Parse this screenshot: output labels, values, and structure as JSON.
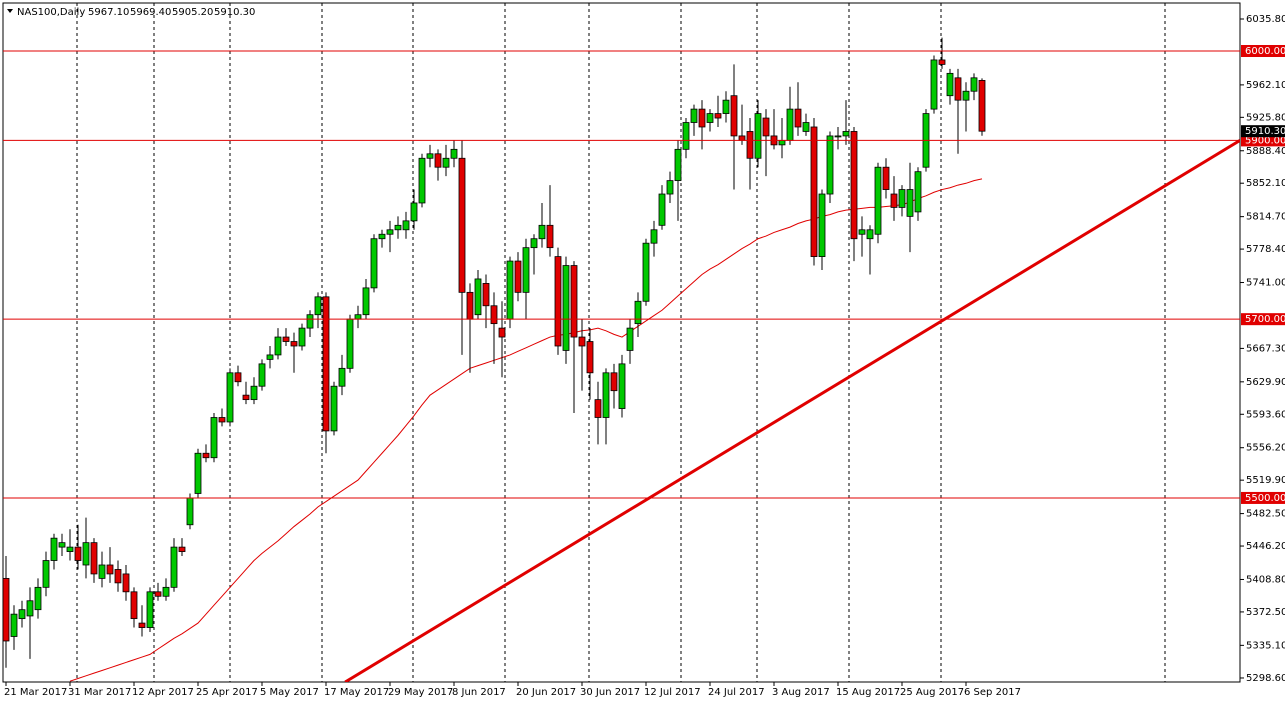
{
  "header": {
    "symbol": "NAS100,Daily",
    "ohlc": [
      "5967.10",
      "5969.40",
      "5905.20",
      "5910.30"
    ]
  },
  "chart_data": {
    "type": "candlestick",
    "categories": [
      "21 Mar 2017",
      null,
      null,
      null,
      null,
      null,
      null,
      null,
      "31 Mar 2017",
      null,
      null,
      null,
      null,
      null,
      null,
      null,
      "12 Apr 2017",
      null,
      null,
      null,
      null,
      null,
      null,
      null,
      "25 Apr 2017",
      null,
      null,
      null,
      null,
      null,
      null,
      null,
      "5 May 2017",
      null,
      null,
      null,
      null,
      null,
      null,
      null,
      "17 May 2017",
      null,
      null,
      null,
      null,
      null,
      null,
      null,
      "29 May 2017",
      null,
      null,
      null,
      null,
      null,
      null,
      null,
      "8 Jun 2017",
      null,
      null,
      null,
      null,
      null,
      null,
      null,
      "20 Jun 2017",
      null,
      null,
      null,
      null,
      null,
      null,
      null,
      "30 Jun 2017",
      null,
      null,
      null,
      null,
      null,
      null,
      null,
      "12 Jul 2017",
      null,
      null,
      null,
      null,
      null,
      null,
      null,
      "24 Jul 2017",
      null,
      null,
      null,
      null,
      null,
      null,
      null,
      "3 Aug 2017",
      null,
      null,
      null,
      null,
      null,
      null,
      null,
      "15 Aug 2017",
      null,
      null,
      null,
      null,
      null,
      null,
      null,
      "25 Aug 2017",
      null,
      null,
      null,
      null,
      null,
      null,
      null,
      "6 Sep 2017",
      null,
      null
    ],
    "open": [
      5410,
      5345,
      5365,
      5368,
      5375,
      5400,
      5430,
      5445,
      5440,
      5445,
      5425,
      5450,
      5410,
      5425,
      5420,
      5415,
      5395,
      5360,
      5355,
      5395,
      5390,
      5400,
      5445,
      5470,
      5505,
      5550,
      5545,
      5590,
      5585,
      5640,
      5615,
      5610,
      5625,
      5655,
      5660,
      5680,
      5675,
      5670,
      5690,
      5705,
      5725,
      5575,
      5625,
      5645,
      5700,
      5705,
      5735,
      5790,
      5795,
      5800,
      5800,
      5810,
      5830,
      5880,
      5885,
      5870,
      5880,
      5880,
      5730,
      5705,
      5740,
      5715,
      5690,
      5700,
      5765,
      5730,
      5780,
      5790,
      5805,
      5770,
      5665,
      5760,
      5680,
      5675,
      5610,
      5590,
      5640,
      5600,
      5665,
      5695,
      5720,
      5785,
      5805,
      5840,
      5855,
      5890,
      5920,
      5935,
      5920,
      5930,
      5930,
      5950,
      5905,
      5910,
      5880,
      5925,
      5905,
      5895,
      5900,
      5935,
      5910,
      5915,
      5770,
      5840,
      5905,
      5905,
      5910,
      5795,
      5790,
      5795,
      5870,
      5840,
      5825,
      5815,
      5820,
      5870,
      5935,
      5990,
      5950,
      5970,
      5945,
      5955,
      5967.1
    ],
    "high": [
      5435,
      5380,
      5385,
      5400,
      5410,
      5440,
      5460,
      5460,
      5465,
      5470,
      5478,
      5455,
      5440,
      5445,
      5430,
      5425,
      5400,
      5380,
      5400,
      5405,
      5410,
      5455,
      5455,
      5505,
      5555,
      5560,
      5595,
      5600,
      5645,
      5648,
      5630,
      5635,
      5655,
      5670,
      5690,
      5690,
      5685,
      5695,
      5710,
      5730,
      5730,
      5630,
      5660,
      5705,
      5715,
      5745,
      5795,
      5800,
      5810,
      5815,
      5820,
      5845,
      5885,
      5895,
      5890,
      5895,
      5900,
      5900,
      5740,
      5755,
      5750,
      5730,
      5720,
      5770,
      5775,
      5790,
      5795,
      5830,
      5850,
      5780,
      5770,
      5765,
      5700,
      5690,
      5630,
      5645,
      5650,
      5660,
      5700,
      5730,
      5790,
      5810,
      5850,
      5865,
      5900,
      5925,
      5940,
      5945,
      5935,
      5950,
      5955,
      5985,
      5940,
      5925,
      5945,
      5935,
      5935,
      5925,
      5960,
      5965,
      5930,
      5925,
      5845,
      5910,
      5915,
      5945,
      5915,
      5815,
      5805,
      5875,
      5880,
      5860,
      5850,
      5875,
      5870,
      5935,
      5995,
      6015,
      5980,
      5980,
      5965,
      5975,
      5969.4
    ],
    "low": [
      5310,
      5330,
      5355,
      5320,
      5365,
      5390,
      5420,
      5435,
      5430,
      5420,
      5410,
      5405,
      5400,
      5405,
      5395,
      5385,
      5355,
      5345,
      5350,
      5385,
      5385,
      5395,
      5435,
      5465,
      5500,
      5540,
      5540,
      5580,
      5580,
      5625,
      5605,
      5605,
      5620,
      5645,
      5655,
      5670,
      5640,
      5665,
      5680,
      5690,
      5550,
      5570,
      5615,
      5640,
      5690,
      5700,
      5730,
      5780,
      5775,
      5790,
      5790,
      5800,
      5825,
      5870,
      5855,
      5860,
      5870,
      5660,
      5640,
      5700,
      5690,
      5650,
      5635,
      5690,
      5720,
      5700,
      5750,
      5780,
      5770,
      5660,
      5650,
      5595,
      5620,
      5610,
      5560,
      5560,
      5600,
      5590,
      5650,
      5680,
      5715,
      5770,
      5800,
      5830,
      5810,
      5880,
      5905,
      5890,
      5910,
      5915,
      5920,
      5845,
      5895,
      5845,
      5870,
      5860,
      5890,
      5880,
      5895,
      5905,
      5905,
      5760,
      5755,
      5830,
      5890,
      5895,
      5765,
      5770,
      5750,
      5785,
      5835,
      5810,
      5815,
      5775,
      5810,
      5865,
      5930,
      5980,
      5940,
      5885,
      5910,
      5945,
      5905.2
    ],
    "close": [
      5340,
      5370,
      5375,
      5385,
      5400,
      5430,
      5455,
      5450,
      5445,
      5430,
      5450,
      5415,
      5425,
      5415,
      5405,
      5395,
      5365,
      5355,
      5395,
      5390,
      5400,
      5445,
      5440,
      5500,
      5550,
      5545,
      5590,
      5585,
      5640,
      5630,
      5610,
      5625,
      5650,
      5660,
      5680,
      5675,
      5670,
      5690,
      5705,
      5725,
      5575,
      5625,
      5645,
      5700,
      5705,
      5735,
      5790,
      5795,
      5800,
      5805,
      5810,
      5830,
      5880,
      5885,
      5870,
      5880,
      5890,
      5730,
      5700,
      5745,
      5715,
      5695,
      5680,
      5765,
      5730,
      5780,
      5790,
      5805,
      5780,
      5670,
      5760,
      5680,
      5670,
      5640,
      5590,
      5640,
      5620,
      5650,
      5690,
      5720,
      5785,
      5800,
      5840,
      5855,
      5890,
      5920,
      5935,
      5915,
      5930,
      5925,
      5945,
      5905,
      5900,
      5880,
      5930,
      5905,
      5895,
      5900,
      5935,
      5915,
      5920,
      5770,
      5840,
      5905,
      5905,
      5910,
      5790,
      5800,
      5800,
      5870,
      5845,
      5825,
      5845,
      5845,
      5865,
      5930,
      5990,
      5985,
      5975,
      5945,
      5955,
      5970,
      5910.3
    ],
    "moving_average": {
      "color": "#e00000",
      "values": [
        null,
        null,
        null,
        null,
        null,
        null,
        null,
        null,
        5295,
        5298,
        5301,
        5304,
        5307,
        5310,
        5313,
        5316,
        5319,
        5322,
        5325,
        5331,
        5337,
        5343,
        5348,
        5354,
        5360,
        5370,
        5380,
        5390,
        5400,
        5410,
        5420,
        5430,
        5438,
        5445,
        5452,
        5460,
        5468,
        5475,
        5482,
        5490,
        5496,
        5502,
        5508,
        5514,
        5520,
        5530,
        5540,
        5550,
        5560,
        5570,
        5581,
        5592,
        5604,
        5615,
        5621,
        5627,
        5633,
        5639,
        5645,
        5648,
        5651,
        5654,
        5657,
        5660,
        5664,
        5668,
        5672,
        5676,
        5680,
        5682,
        5683,
        5685,
        5687,
        5688,
        5690,
        5687,
        5683,
        5680,
        5686,
        5692,
        5698,
        5704,
        5710,
        5718,
        5726,
        5734,
        5742,
        5750,
        5756,
        5761,
        5767,
        5773,
        5779,
        5784,
        5790,
        5793,
        5797,
        5800,
        5803,
        5807,
        5810,
        5812,
        5815,
        5817,
        5820,
        5822,
        5823,
        5824,
        5825,
        5825,
        5826,
        5827,
        5828,
        5831,
        5835,
        5838,
        5842,
        5845,
        5847,
        5850,
        5852,
        5855,
        5857
      ]
    },
    "up_color": "#00c800",
    "down_color": "#e00000",
    "ylim": [
      5294.1,
      6053.7
    ],
    "yticks": [
      {
        "value": 6035.8,
        "label": "6035.80"
      },
      {
        "value": 5962.1,
        "label": "5962.10"
      },
      {
        "value": 5925.8,
        "label": "5925.80"
      },
      {
        "value": 5888.4,
        "label": "5888.40"
      },
      {
        "value": 5852.1,
        "label": "5852.10"
      },
      {
        "value": 5814.7,
        "label": "5814.70"
      },
      {
        "value": 5778.4,
        "label": "5778.40"
      },
      {
        "value": 5741,
        "label": "5741.00"
      },
      {
        "value": 5667.3,
        "label": "5667.30"
      },
      {
        "value": 5629.9,
        "label": "5629.90"
      },
      {
        "value": 5593.6,
        "label": "5593.60"
      },
      {
        "value": 5556.2,
        "label": "5556.20"
      },
      {
        "value": 5519.9,
        "label": "5519.90"
      },
      {
        "value": 5482.5,
        "label": "5482.50"
      },
      {
        "value": 5446.2,
        "label": "5446.20"
      },
      {
        "value": 5408.8,
        "label": "5408.80"
      },
      {
        "value": 5372.5,
        "label": "5372.50"
      },
      {
        "value": 5335.1,
        "label": "5335.10"
      },
      {
        "value": 5298.6,
        "label": "5298.60"
      }
    ],
    "levels": [
      {
        "value": 6000,
        "label": "6000.00"
      },
      {
        "value": 5900,
        "label": "5900.00"
      },
      {
        "value": 5700,
        "label": "5700.00"
      },
      {
        "value": 5500,
        "label": "5500.00"
      }
    ],
    "level_color": "#e00000",
    "last_price": {
      "value": 5910.3,
      "label": "5910.30"
    },
    "trendline": {
      "x": [
        42.4,
        154.25
      ],
      "y": [
        5294.1,
        5900
      ],
      "color": "#e00000"
    }
  }
}
